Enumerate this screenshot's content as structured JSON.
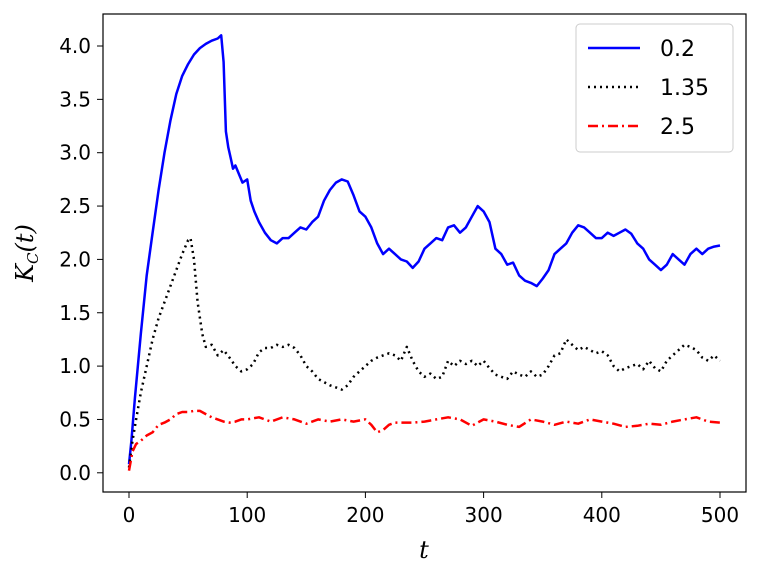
{
  "chart_data": {
    "type": "line",
    "title": "",
    "xlabel": "t",
    "ylabel": "K_C(t)",
    "xlim": [
      -22,
      522
    ],
    "ylim": [
      -0.18,
      4.3
    ],
    "xticks": [
      0,
      100,
      200,
      300,
      400,
      500
    ],
    "xtick_labels": [
      "0",
      "100",
      "200",
      "300",
      "400",
      "500"
    ],
    "yticks": [
      0.0,
      0.5,
      1.0,
      1.5,
      2.0,
      2.5,
      3.0,
      3.5,
      4.0
    ],
    "ytick_labels": [
      "0.0",
      "0.5",
      "1.0",
      "1.5",
      "2.0",
      "2.5",
      "3.0",
      "3.5",
      "4.0"
    ],
    "grid": false,
    "legend_position": "top-right",
    "series": [
      {
        "name": "0.2",
        "color": "#0000ff",
        "style": "solid",
        "x": [
          0,
          2,
          5,
          10,
          15,
          20,
          25,
          30,
          35,
          40,
          45,
          50,
          55,
          60,
          65,
          70,
          75,
          78,
          80,
          82,
          84,
          86,
          88,
          90,
          93,
          96,
          100,
          103,
          106,
          110,
          115,
          120,
          125,
          130,
          135,
          140,
          145,
          150,
          155,
          160,
          165,
          170,
          175,
          180,
          185,
          190,
          195,
          200,
          205,
          210,
          215,
          220,
          225,
          230,
          235,
          240,
          245,
          250,
          255,
          260,
          265,
          270,
          275,
          280,
          285,
          290,
          295,
          300,
          305,
          310,
          315,
          320,
          325,
          330,
          335,
          340,
          345,
          350,
          355,
          360,
          365,
          370,
          375,
          380,
          385,
          390,
          395,
          400,
          405,
          410,
          415,
          420,
          425,
          430,
          435,
          440,
          445,
          450,
          455,
          460,
          465,
          470,
          475,
          480,
          485,
          490,
          495,
          500
        ],
        "y": [
          0.08,
          0.3,
          0.7,
          1.3,
          1.85,
          2.25,
          2.65,
          3.0,
          3.3,
          3.55,
          3.72,
          3.83,
          3.92,
          3.98,
          4.02,
          4.05,
          4.07,
          4.1,
          3.85,
          3.2,
          3.05,
          2.95,
          2.85,
          2.88,
          2.8,
          2.72,
          2.75,
          2.55,
          2.45,
          2.35,
          2.25,
          2.18,
          2.15,
          2.2,
          2.2,
          2.25,
          2.3,
          2.28,
          2.35,
          2.4,
          2.55,
          2.65,
          2.72,
          2.75,
          2.73,
          2.6,
          2.45,
          2.4,
          2.3,
          2.15,
          2.05,
          2.1,
          2.05,
          2.0,
          1.98,
          1.92,
          1.98,
          2.1,
          2.15,
          2.2,
          2.18,
          2.3,
          2.32,
          2.25,
          2.3,
          2.4,
          2.5,
          2.45,
          2.35,
          2.1,
          2.05,
          1.95,
          1.97,
          1.85,
          1.8,
          1.78,
          1.75,
          1.82,
          1.9,
          2.05,
          2.1,
          2.15,
          2.25,
          2.32,
          2.3,
          2.25,
          2.2,
          2.2,
          2.25,
          2.22,
          2.25,
          2.28,
          2.24,
          2.15,
          2.1,
          2.0,
          1.95,
          1.9,
          1.95,
          2.05,
          2.0,
          1.95,
          2.05,
          2.1,
          2.05,
          2.1,
          2.12,
          2.13
        ]
      },
      {
        "name": "1.35",
        "color": "#000000",
        "style": "dotted",
        "x": [
          0,
          3,
          6,
          10,
          15,
          20,
          25,
          30,
          35,
          40,
          45,
          50,
          52,
          55,
          58,
          62,
          65,
          70,
          75,
          80,
          85,
          90,
          95,
          100,
          105,
          110,
          115,
          120,
          125,
          130,
          135,
          140,
          145,
          150,
          155,
          160,
          165,
          170,
          175,
          180,
          185,
          190,
          195,
          200,
          205,
          210,
          215,
          220,
          225,
          230,
          235,
          240,
          245,
          250,
          255,
          260,
          265,
          270,
          275,
          280,
          285,
          290,
          295,
          300,
          305,
          310,
          315,
          320,
          325,
          330,
          335,
          340,
          345,
          350,
          355,
          360,
          365,
          370,
          375,
          380,
          385,
          390,
          395,
          400,
          405,
          410,
          415,
          420,
          425,
          430,
          435,
          440,
          445,
          450,
          455,
          460,
          465,
          470,
          475,
          480,
          485,
          490,
          495,
          500
        ],
        "y": [
          0.05,
          0.3,
          0.5,
          0.75,
          1.0,
          1.25,
          1.45,
          1.6,
          1.75,
          1.9,
          2.05,
          2.18,
          2.2,
          2.0,
          1.6,
          1.3,
          1.18,
          1.2,
          1.1,
          1.15,
          1.08,
          1.0,
          0.95,
          0.97,
          1.02,
          1.13,
          1.17,
          1.17,
          1.2,
          1.18,
          1.2,
          1.17,
          1.1,
          1.0,
          0.95,
          0.88,
          0.85,
          0.82,
          0.8,
          0.78,
          0.82,
          0.9,
          0.95,
          1.0,
          1.05,
          1.08,
          1.1,
          1.12,
          1.1,
          1.05,
          1.18,
          1.05,
          0.95,
          0.9,
          0.93,
          0.88,
          0.9,
          1.05,
          1.0,
          1.05,
          1.02,
          1.05,
          1.0,
          1.05,
          0.98,
          0.92,
          0.9,
          0.88,
          0.95,
          0.92,
          0.9,
          0.95,
          0.9,
          0.92,
          1.0,
          1.1,
          1.12,
          1.25,
          1.2,
          1.15,
          1.18,
          1.15,
          1.12,
          1.14,
          1.1,
          1.0,
          0.95,
          0.98,
          1.0,
          1.02,
          0.97,
          1.05,
          0.98,
          0.95,
          1.05,
          1.1,
          1.15,
          1.2,
          1.18,
          1.15,
          1.08,
          1.05,
          1.1,
          1.05
        ]
      },
      {
        "name": "2.5",
        "color": "#ff0000",
        "style": "dashdot",
        "x": [
          0,
          3,
          6,
          10,
          15,
          20,
          25,
          30,
          35,
          40,
          45,
          50,
          55,
          60,
          65,
          70,
          75,
          80,
          85,
          90,
          95,
          100,
          110,
          120,
          130,
          140,
          150,
          160,
          170,
          180,
          190,
          200,
          205,
          210,
          215,
          220,
          225,
          230,
          240,
          250,
          260,
          270,
          280,
          290,
          300,
          310,
          320,
          330,
          340,
          350,
          360,
          370,
          380,
          390,
          400,
          410,
          420,
          430,
          440,
          450,
          460,
          470,
          480,
          490,
          500
        ],
        "y": [
          0.02,
          0.2,
          0.27,
          0.3,
          0.35,
          0.38,
          0.45,
          0.47,
          0.5,
          0.55,
          0.57,
          0.57,
          0.58,
          0.58,
          0.55,
          0.52,
          0.5,
          0.48,
          0.47,
          0.48,
          0.5,
          0.5,
          0.52,
          0.48,
          0.52,
          0.5,
          0.46,
          0.5,
          0.48,
          0.5,
          0.48,
          0.5,
          0.45,
          0.38,
          0.4,
          0.45,
          0.47,
          0.47,
          0.47,
          0.48,
          0.5,
          0.52,
          0.5,
          0.44,
          0.5,
          0.48,
          0.45,
          0.43,
          0.5,
          0.48,
          0.45,
          0.48,
          0.46,
          0.5,
          0.48,
          0.46,
          0.43,
          0.44,
          0.46,
          0.45,
          0.48,
          0.5,
          0.52,
          0.48,
          0.47
        ]
      }
    ]
  }
}
